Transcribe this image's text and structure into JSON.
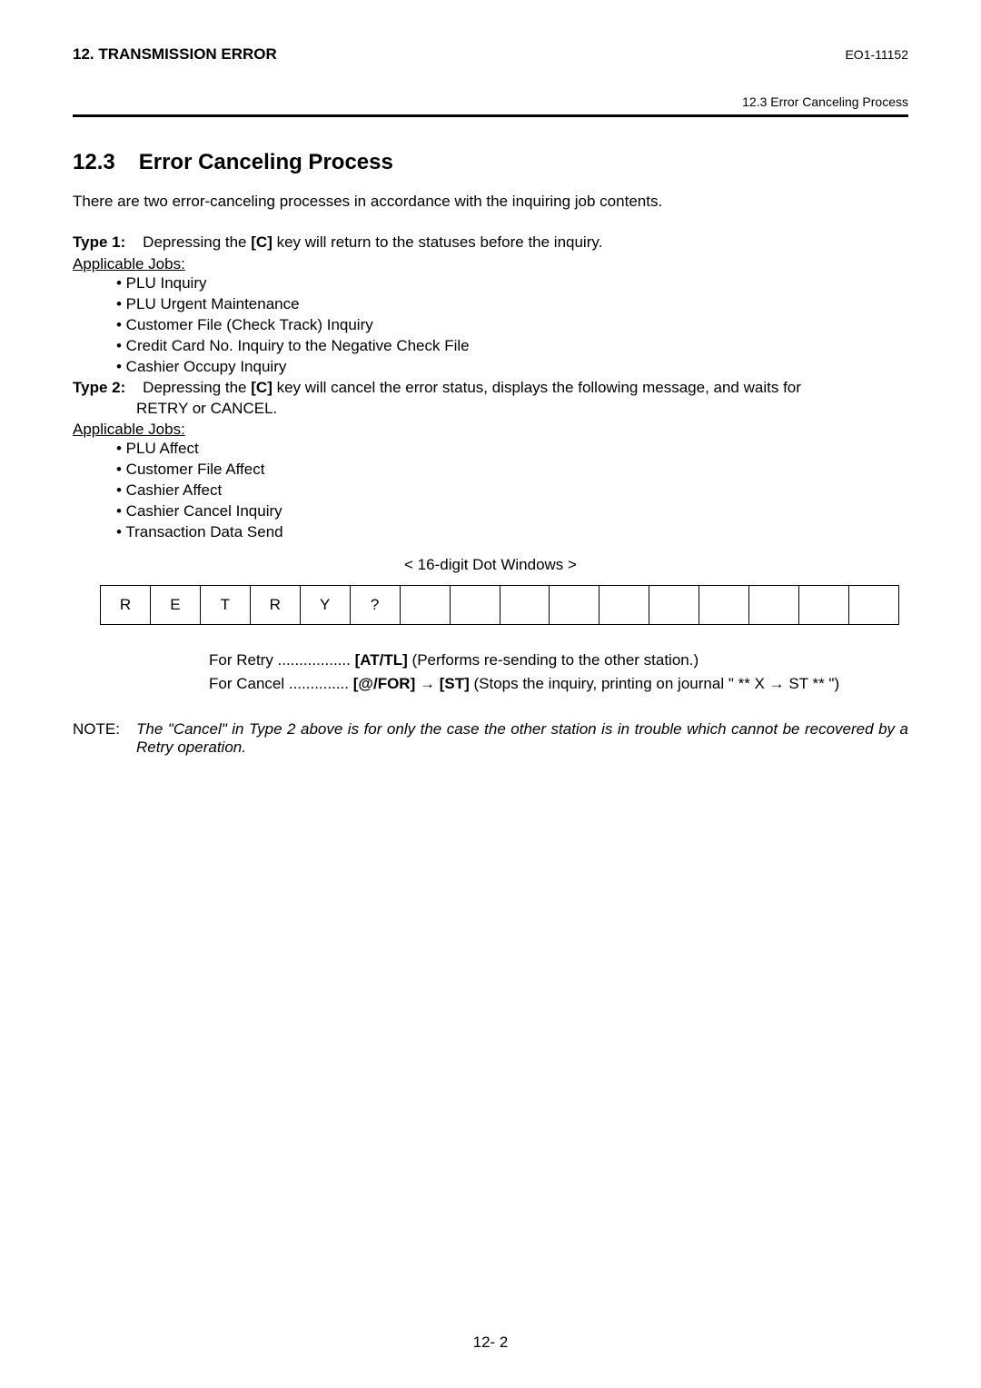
{
  "header": {
    "left": "12. TRANSMISSION ERROR",
    "right": "EO1-11152",
    "sub_right": "12.3 Error Canceling Process"
  },
  "section": {
    "number": "12.3",
    "title": "Error Canceling Process"
  },
  "intro": "There are two error-canceling processes in accordance with the inquiring job contents.",
  "type1": {
    "label": "Type 1:",
    "text_before": "Depressing the ",
    "key": "[C]",
    "text_after": " key will return to the statuses before the inquiry."
  },
  "applicable_label": "Applicable Jobs:",
  "type1_jobs": [
    "• PLU Inquiry",
    "• PLU Urgent Maintenance",
    "• Customer File (Check Track) Inquiry",
    "• Credit Card No. Inquiry to the Negative Check File",
    "• Cashier Occupy Inquiry"
  ],
  "type2": {
    "label": "Type 2:",
    "text_before": "Depressing the ",
    "key": "[C]",
    "text_after": " key will cancel the error status, displays the following message, and waits for",
    "cont": "RETRY or CANCEL."
  },
  "type2_jobs": [
    "• PLU Affect",
    "• Customer File Affect",
    "• Cashier Affect",
    "• Cashier Cancel Inquiry",
    "• Transaction Data Send"
  ],
  "windows_caption": "< 16-digit Dot Windows >",
  "cells": [
    "R",
    "E",
    "T",
    "R",
    "Y",
    "?",
    "",
    "",
    "",
    "",
    "",
    "",
    "",
    "",
    "",
    ""
  ],
  "retry": {
    "label": "For Retry .................",
    "key": "[AT/TL]",
    "after": " (Performs re-sending to the other station.)"
  },
  "cancel": {
    "label": "For Cancel ..............",
    "key1": "[@/FOR]",
    "arrow1": " → ",
    "key2": "[ST]",
    "after1": " (Stops the inquiry, printing on journal \" ** X → ST ** \")"
  },
  "note": {
    "label": "NOTE:",
    "body": "The \"Cancel\" in Type 2 above is for only the case the other station is in trouble which cannot be recovered by a Retry operation."
  },
  "page_number": "12- 2"
}
